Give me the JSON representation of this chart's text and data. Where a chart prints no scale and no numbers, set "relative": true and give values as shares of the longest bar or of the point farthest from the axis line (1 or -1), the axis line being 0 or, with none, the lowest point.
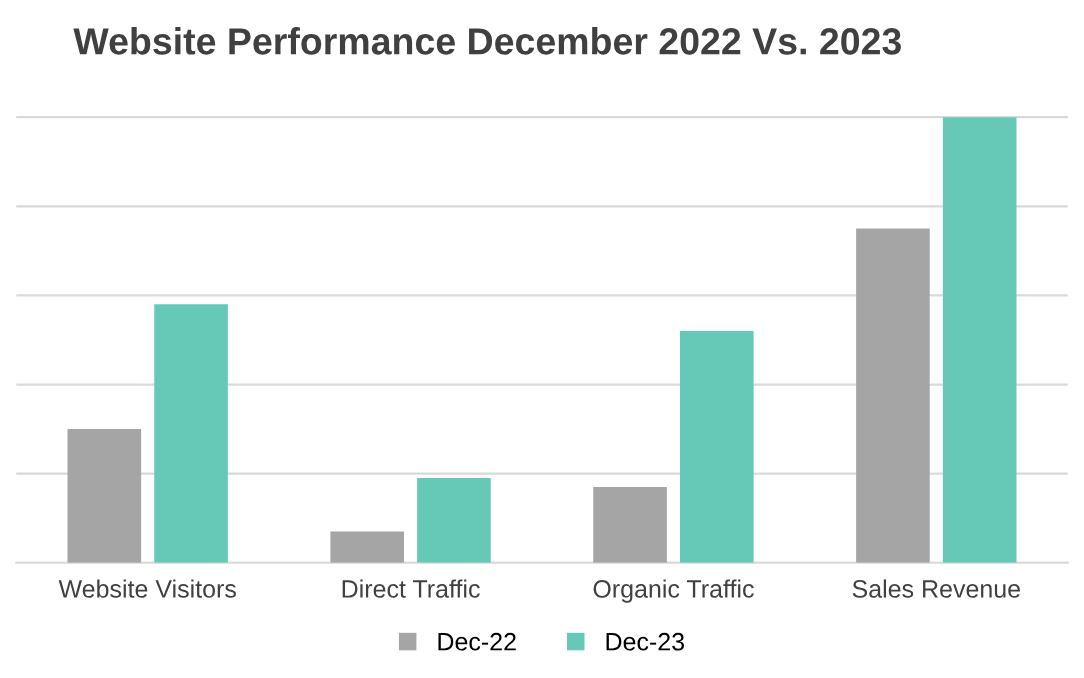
{
  "chart_data": {
    "type": "bar",
    "title": "Website Performance December 2022 Vs. 2023",
    "categories": [
      "Website Visitors",
      "Direct Traffic",
      "Organic Traffic",
      "Sales Revenue"
    ],
    "relative": true,
    "grid": "y",
    "legend": "bottom",
    "series": [
      {
        "name": "Dec-22",
        "color": "#a5a5a5",
        "values": [
          0.3,
          0.07,
          0.17,
          0.75
        ]
      },
      {
        "name": "Dec-23",
        "color": "#66c9b8",
        "values": [
          0.58,
          0.19,
          0.52,
          1.0
        ]
      }
    ]
  }
}
